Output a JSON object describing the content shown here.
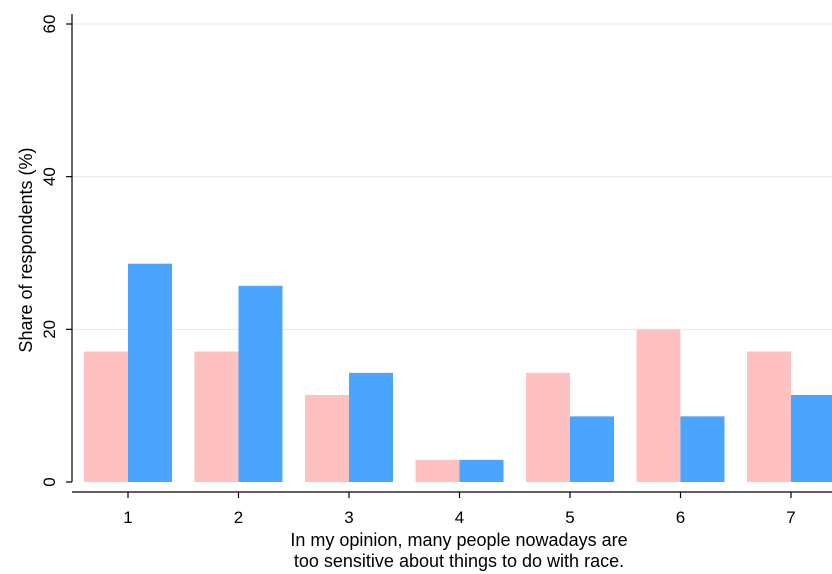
{
  "chart_data": {
    "type": "bar",
    "categories": [
      "1",
      "2",
      "3",
      "4",
      "5",
      "6",
      "7"
    ],
    "series": [
      {
        "values": [
          17.1,
          17.1,
          11.4,
          2.9,
          14.3,
          20.0,
          17.1
        ],
        "color": "#ffc0c0"
      },
      {
        "values": [
          28.6,
          25.7,
          14.3,
          2.9,
          8.6,
          8.6,
          11.4
        ],
        "color": "#4aa5ff"
      }
    ],
    "ylabel": "Share of respondents (%)",
    "xlabel_lines": [
      "In my opinion, many people nowadays are",
      "too sensitive about things to do with race."
    ],
    "ylim": [
      0,
      60
    ],
    "yticks": [
      "0",
      "20",
      "40",
      "60"
    ],
    "grid": true,
    "legend": "none"
  }
}
